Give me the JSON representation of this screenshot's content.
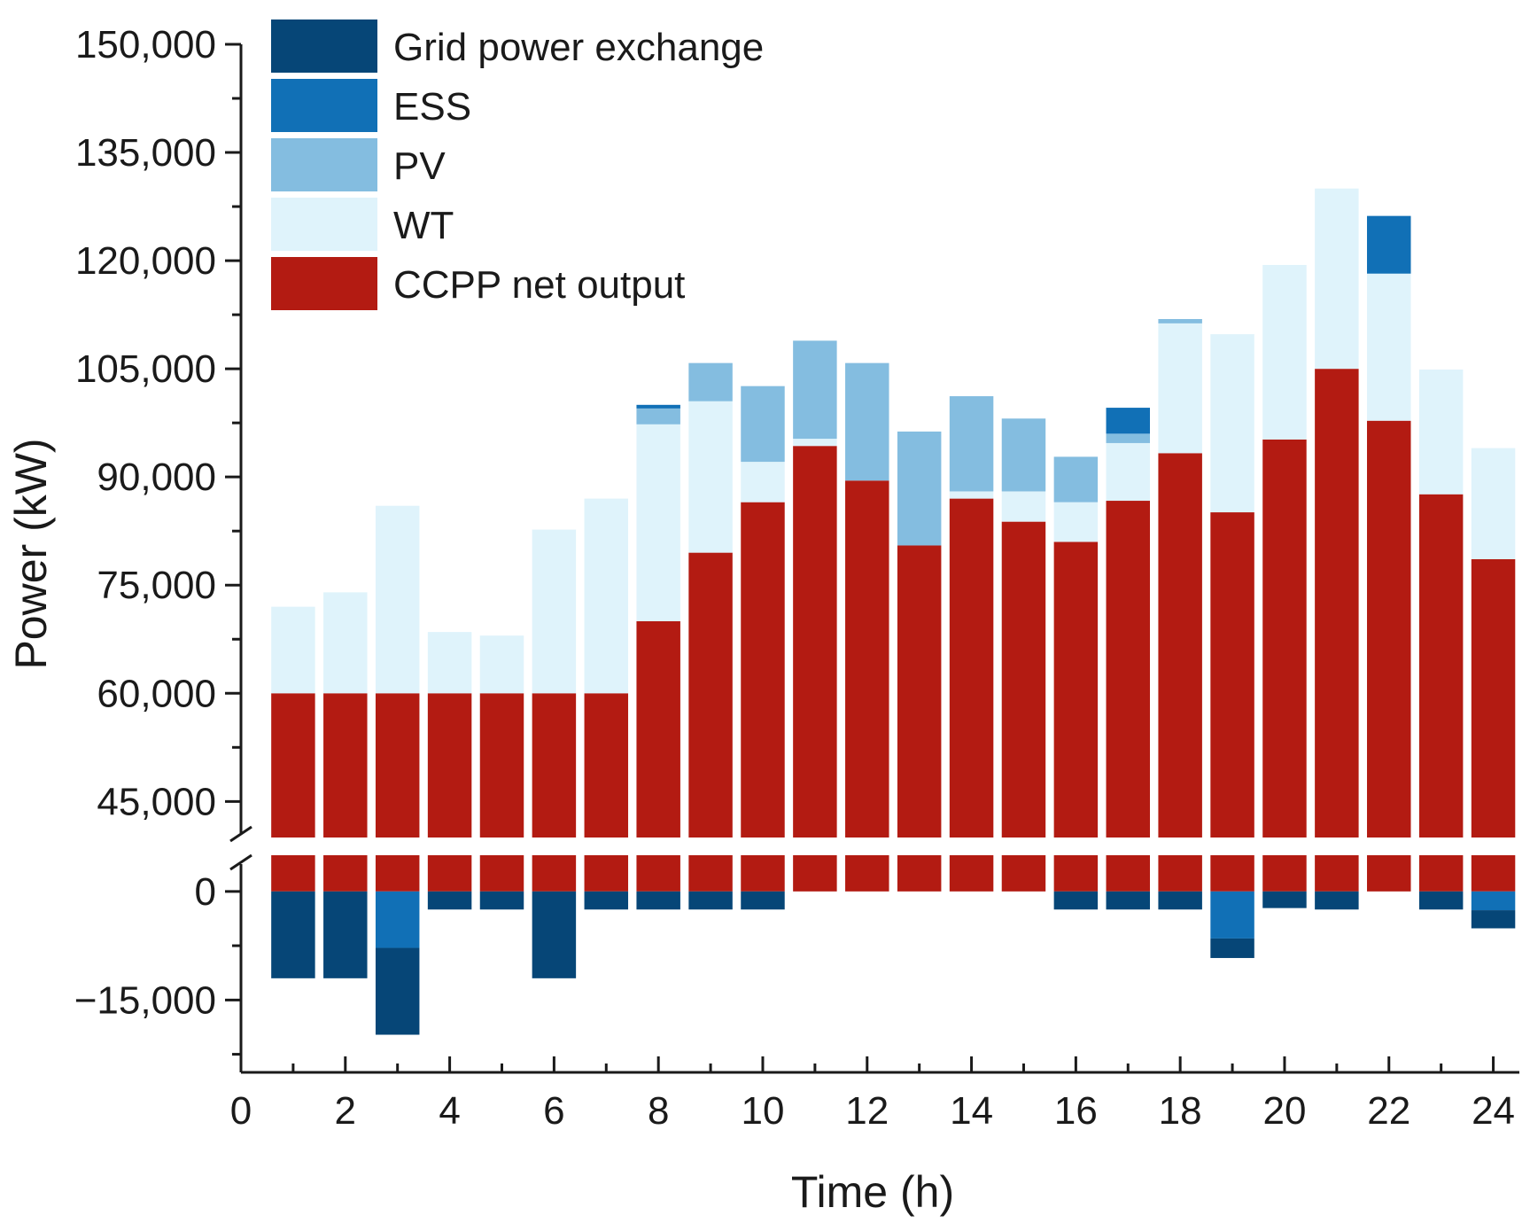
{
  "chart_data": {
    "type": "bar",
    "stacked": true,
    "broken_y_axis": true,
    "xlabel": "Time (h)",
    "ylabel": "Power (kW)",
    "x": [
      1,
      2,
      3,
      4,
      5,
      6,
      7,
      8,
      9,
      10,
      11,
      12,
      13,
      14,
      15,
      16,
      17,
      18,
      19,
      20,
      21,
      22,
      23,
      24
    ],
    "x_ticks": [
      0,
      2,
      4,
      6,
      8,
      10,
      12,
      14,
      16,
      18,
      20,
      22,
      24
    ],
    "x_tick_labels": [
      "0",
      "2",
      "4",
      "6",
      "8",
      "10",
      "12",
      "14",
      "16",
      "18",
      "20",
      "22",
      "24"
    ],
    "xlim": [
      0,
      24.5
    ],
    "upper_ylim": [
      40000,
      150000
    ],
    "upper_y_ticks": [
      45000,
      60000,
      75000,
      90000,
      105000,
      120000,
      135000,
      150000
    ],
    "upper_y_tick_labels": [
      "45,000",
      "60,000",
      "75,000",
      "90,000",
      "105,000",
      "120,000",
      "135,000",
      "150,000"
    ],
    "lower_ylim": [
      -25000,
      5000
    ],
    "lower_y_ticks": [
      -15000,
      0
    ],
    "lower_y_tick_labels": [
      "−15,000",
      "0"
    ],
    "legend": [
      "Grid power exchange",
      "ESS",
      "PV",
      "WT",
      "CCPP net output"
    ],
    "legend_position": "top-left",
    "colors": {
      "Grid power exchange": "#064677",
      "ESS": "#1170b6",
      "PV": "#84bde0",
      "WT": "#dff3fb",
      "CCPP net output": "#b31b12"
    },
    "series": [
      {
        "name": "CCPP net output",
        "values": [
          60000,
          60000,
          60000,
          60000,
          60000,
          60000,
          60000,
          70000,
          79500,
          86500,
          94300,
          89500,
          80500,
          87000,
          83800,
          81000,
          86700,
          93300,
          85100,
          95200,
          105000,
          97800,
          87600,
          78600
        ]
      },
      {
        "name": "WT",
        "values": [
          12000,
          14000,
          26000,
          8500,
          8000,
          22700,
          27000,
          27300,
          21000,
          5600,
          1000,
          0,
          0,
          1000,
          4200,
          5500,
          8000,
          18000,
          24700,
          24200,
          25000,
          20400,
          17300,
          15400
        ]
      },
      {
        "name": "PV",
        "values": [
          0,
          0,
          0,
          0,
          0,
          0,
          0,
          2200,
          5300,
          10500,
          13600,
          16300,
          15800,
          13200,
          10100,
          6300,
          1300,
          600,
          0,
          0,
          0,
          0,
          0,
          0
        ]
      },
      {
        "name": "ESS",
        "values": [
          0,
          0,
          -7800,
          0,
          0,
          0,
          0,
          500,
          0,
          0,
          0,
          0,
          0,
          0,
          0,
          0,
          3600,
          0,
          -6500,
          0,
          0,
          8000,
          0,
          -2600
        ]
      },
      {
        "name": "Grid power exchange",
        "values": [
          -12000,
          -12000,
          -12000,
          -2500,
          -2500,
          -12000,
          -2500,
          -2500,
          -2500,
          -2500,
          0,
          0,
          0,
          0,
          0,
          -2500,
          -2500,
          -2500,
          -2700,
          -2300,
          -2500,
          0,
          -2500,
          -2500
        ]
      }
    ]
  }
}
